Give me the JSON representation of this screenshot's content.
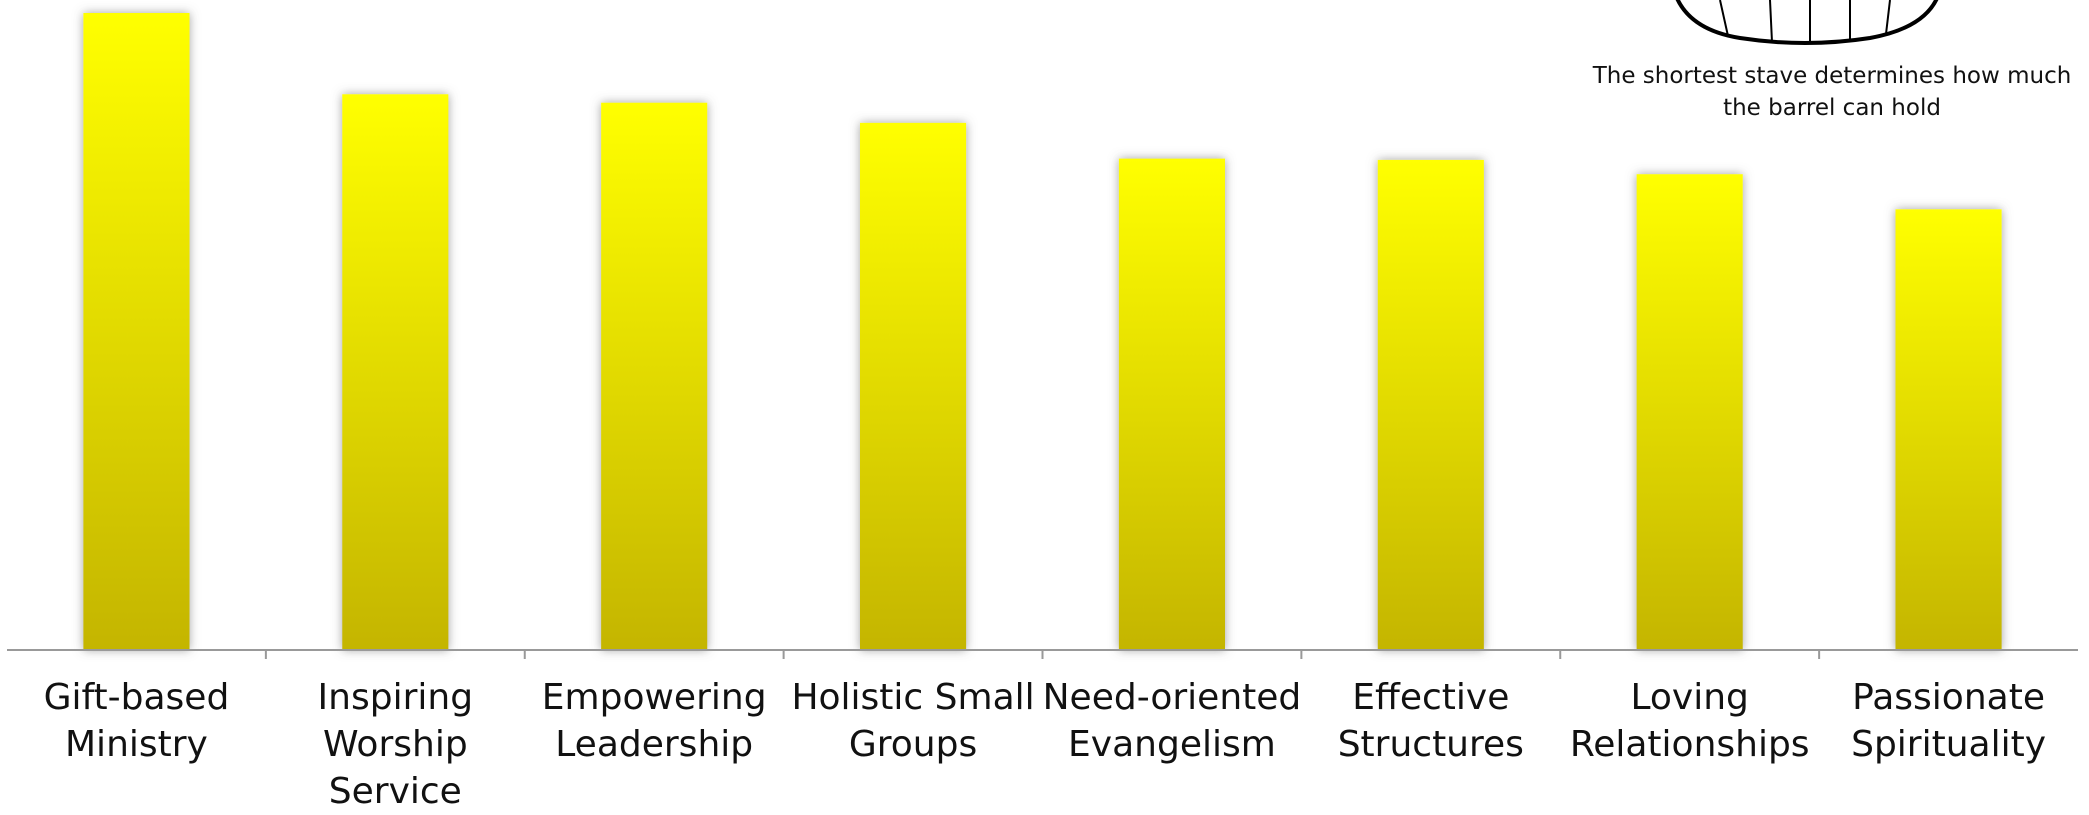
{
  "chart_data": {
    "type": "bar",
    "annotation": "The shortest stave determines how much the barrel can hold",
    "categories": [
      "Gift-based Ministry",
      "Inspiring Worship Service",
      "Empowering Leadership",
      "Holistic Small Groups",
      "Need-oriented Evangelism",
      "Effective Structures",
      "Loving Relationships",
      "Passionate Spirituality"
    ],
    "values": [
      98,
      85.5,
      84.2,
      81.1,
      75.6,
      75.4,
      73.2,
      67.8
    ],
    "color": "#ffff00",
    "ylim": [
      0,
      100
    ]
  }
}
